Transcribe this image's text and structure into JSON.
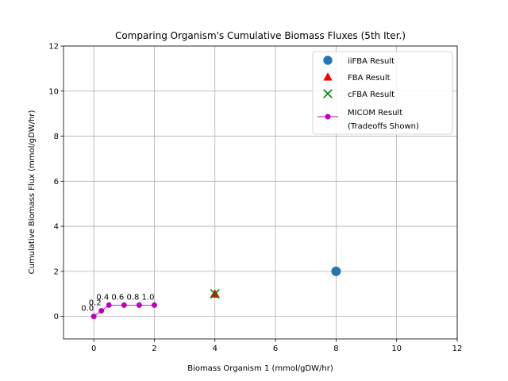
{
  "chart_data": {
    "type": "scatter",
    "title": "Comparing Organism's Cumulative Biomass Fluxes (5th Iter.)",
    "xlabel": "Biomass Organism 1 (mmol/gDW/hr)",
    "ylabel": "Cumulative Biomass Flux (mmol/gDW/hr)",
    "xlim": [
      -1,
      12
    ],
    "ylim": [
      -1,
      12
    ],
    "xticks": [
      0,
      2,
      4,
      6,
      8,
      10,
      12
    ],
    "yticks": [
      0,
      2,
      4,
      6,
      8,
      10,
      12
    ],
    "xtick_labels": [
      "0",
      "2",
      "4",
      "6",
      "8",
      "10",
      "12"
    ],
    "ytick_labels": [
      "0",
      "2",
      "4",
      "6",
      "8",
      "10",
      "12"
    ],
    "grid": true,
    "legend_position": "top-right",
    "series": [
      {
        "name": "iiFBA Result",
        "marker": "circle",
        "color": "#1f77b4",
        "points": [
          [
            8,
            2
          ]
        ]
      },
      {
        "name": "FBA Result",
        "marker": "triangle",
        "color": "#ff0000",
        "points": [
          [
            4,
            1
          ]
        ]
      },
      {
        "name": "cFBA Result",
        "marker": "x",
        "color": "#008000",
        "points": [
          [
            4,
            1
          ]
        ]
      },
      {
        "name": "MICOM Result\n(Tradeoffs Shown)",
        "marker": "circle-line",
        "color": "#bf00bf",
        "points": [
          [
            0,
            0
          ],
          [
            0.25,
            0.25
          ],
          [
            0.5,
            0.5
          ],
          [
            1,
            0.5
          ],
          [
            1.5,
            0.5
          ],
          [
            2,
            0.5
          ]
        ]
      }
    ],
    "annotations": [
      {
        "text": "0.0",
        "x": 0,
        "y": 0
      },
      {
        "text": "0.2",
        "x": 0.25,
        "y": 0.25
      },
      {
        "text": "0.4",
        "x": 0.5,
        "y": 0.5
      },
      {
        "text": "0.6",
        "x": 1,
        "y": 0.5
      },
      {
        "text": "0.8",
        "x": 1.5,
        "y": 0.5
      },
      {
        "text": "1.0",
        "x": 2,
        "y": 0.5
      }
    ]
  }
}
